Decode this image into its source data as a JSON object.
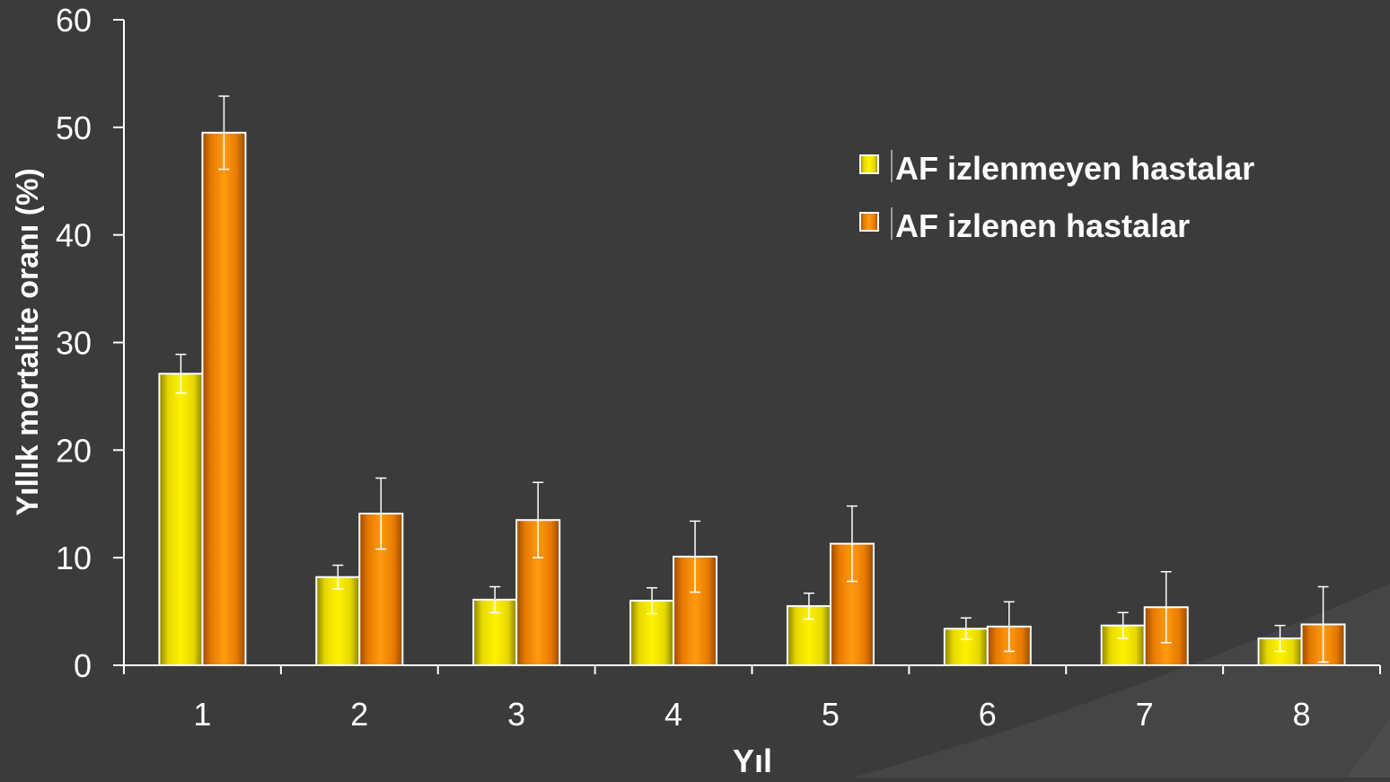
{
  "chart_data": {
    "type": "bar",
    "title": "",
    "xlabel": "Yıl",
    "ylabel": "Yıllık mortalite oranı (%)",
    "ylim": [
      0,
      60
    ],
    "yticks": [
      "0",
      "10",
      "20",
      "30",
      "40",
      "50",
      "60"
    ],
    "categories": [
      "1",
      "2",
      "3",
      "4",
      "5",
      "6",
      "7",
      "8"
    ],
    "series": [
      {
        "name": "AF izlenmeyen hastalar",
        "values": [
          27.1,
          8.2,
          6.1,
          6.0,
          5.5,
          3.4,
          3.7,
          2.5
        ],
        "error": [
          1.8,
          1.1,
          1.2,
          1.2,
          1.2,
          1.0,
          1.2,
          1.2
        ]
      },
      {
        "name": "AF izlenen hastalar",
        "values": [
          49.5,
          14.1,
          13.5,
          10.1,
          11.3,
          3.6,
          5.4,
          3.8
        ],
        "error": [
          3.4,
          3.3,
          3.5,
          3.3,
          3.5,
          2.3,
          3.3,
          3.5
        ]
      }
    ],
    "legend_position": "top-right",
    "grid": false
  },
  "colors": {
    "background": "#3b3b3b",
    "axis": "#ffffff",
    "text": "#ffffff",
    "series1": "#f3e400",
    "series2": "#f08a00"
  }
}
